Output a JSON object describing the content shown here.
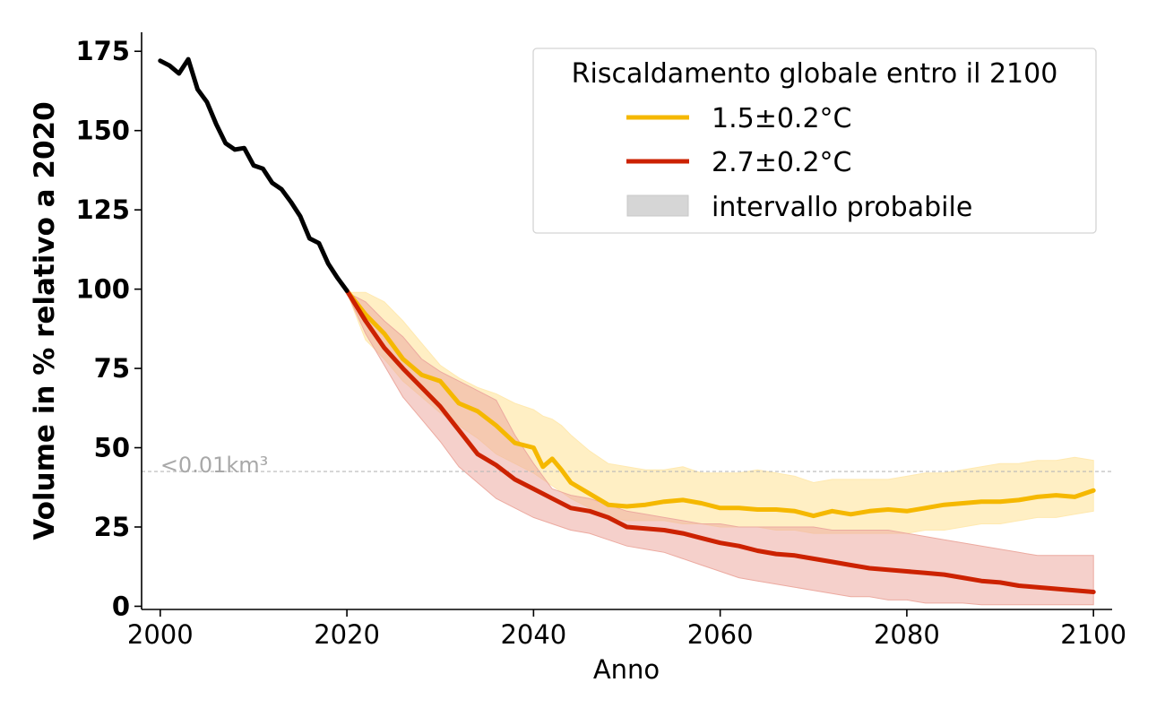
{
  "chart_data": {
    "type": "line",
    "xlabel": "Anno",
    "ylabel": "Volume in % relativo a 2020",
    "xlim": [
      1998,
      2102
    ],
    "ylim": [
      -1,
      181
    ],
    "xticks": [
      2000,
      2020,
      2040,
      2060,
      2080,
      2100
    ],
    "yticks": [
      0,
      25,
      50,
      75,
      100,
      125,
      150,
      175
    ],
    "grid": false,
    "legend": {
      "title": "Riscaldamento globale entro il 2100",
      "placement": "top-right",
      "entries": [
        "1.5±0.2°C",
        "2.7±0.2°C",
        "intervallo probabile"
      ]
    },
    "annotation": {
      "text": "<0.01km³",
      "y": 42.5
    },
    "colors": {
      "historical": "#000000",
      "s15": "#f5b800",
      "s27": "#cc2200",
      "s15_band": "#ffe9b0",
      "s27_band": "#ecaaa0",
      "threshold": "#b8b8b8",
      "legend_patch": "#d6d6d6"
    },
    "historical": {
      "x": [
        2000,
        2001,
        2002,
        2003,
        2004,
        2005,
        2006,
        2007,
        2008,
        2009,
        2010,
        2011,
        2012,
        2013,
        2014,
        2015,
        2016,
        2017,
        2018,
        2019,
        2020
      ],
      "values": [
        172,
        170.5,
        168,
        172.5,
        163,
        159,
        152,
        146,
        144,
        144.5,
        139,
        138,
        133.5,
        131.5,
        127.5,
        123,
        116,
        114.5,
        108,
        103.5,
        99.5
      ]
    },
    "series": [
      {
        "name": "1.5±0.2°C",
        "x": [
          2020,
          2022,
          2024,
          2026,
          2028,
          2030,
          2032,
          2034,
          2036,
          2038,
          2040,
          2041,
          2042,
          2043,
          2044,
          2046,
          2048,
          2050,
          2052,
          2054,
          2056,
          2058,
          2060,
          2062,
          2064,
          2066,
          2068,
          2070,
          2072,
          2074,
          2076,
          2078,
          2080,
          2082,
          2084,
          2086,
          2088,
          2090,
          2092,
          2094,
          2096,
          2098,
          2100
        ],
        "values": [
          99.5,
          92,
          86,
          78,
          73,
          71,
          64,
          61.5,
          57,
          51.5,
          50,
          44,
          46.5,
          43,
          39,
          35.5,
          32,
          31.5,
          32,
          33,
          33.5,
          32.5,
          31,
          31,
          30.5,
          30.5,
          30,
          28.5,
          30,
          29,
          30,
          30.5,
          30,
          31,
          32,
          32.5,
          33,
          33,
          33.5,
          34.5,
          35,
          34.5,
          36.5
        ],
        "band_low": [
          99,
          84,
          78,
          71,
          66,
          61,
          57,
          53,
          48,
          45,
          42,
          40,
          38,
          36,
          34,
          31,
          28,
          27,
          27,
          27,
          26,
          26,
          25,
          25,
          25,
          24,
          24,
          23,
          23,
          23,
          23,
          23,
          23,
          24,
          24,
          25,
          26,
          26,
          27,
          28,
          28,
          29,
          30
        ],
        "band_high": [
          99,
          99,
          96,
          90,
          83,
          76,
          72,
          69,
          67,
          64,
          62,
          60,
          59,
          57,
          54,
          49,
          45,
          44,
          43,
          43,
          44,
          42,
          42,
          42,
          43,
          42,
          41,
          39,
          40,
          40,
          40,
          40,
          41,
          42,
          42,
          43,
          44,
          45,
          45,
          46,
          46,
          47,
          46
        ]
      },
      {
        "name": "2.7±0.2°C",
        "x": [
          2020,
          2022,
          2024,
          2026,
          2028,
          2030,
          2032,
          2034,
          2036,
          2038,
          2040,
          2042,
          2044,
          2046,
          2048,
          2050,
          2052,
          2054,
          2056,
          2058,
          2060,
          2062,
          2064,
          2066,
          2068,
          2070,
          2072,
          2074,
          2076,
          2078,
          2080,
          2082,
          2084,
          2086,
          2088,
          2090,
          2092,
          2094,
          2096,
          2098,
          2100
        ],
        "values": [
          99.5,
          90,
          81.5,
          75,
          69,
          63,
          55.5,
          48,
          44.5,
          40,
          37,
          34,
          31,
          30,
          28,
          25,
          24.5,
          24,
          23,
          21.5,
          20,
          19,
          17.5,
          16.5,
          16,
          15,
          14,
          13,
          12,
          11.5,
          11,
          10.5,
          10,
          9,
          8,
          7.5,
          6.5,
          6,
          5.5,
          5,
          4.5
        ],
        "band_low": [
          99,
          86,
          76,
          66,
          59,
          52,
          44,
          39,
          34,
          31,
          28,
          26,
          24,
          23,
          21,
          19,
          18,
          17,
          15,
          13,
          11,
          9,
          8,
          7,
          6,
          5,
          4,
          3,
          3,
          2,
          2,
          1,
          1,
          1,
          0.5,
          0.5,
          0.5,
          0.5,
          0.5,
          0.5,
          0.5
        ],
        "band_high": [
          99,
          96,
          90,
          85,
          78,
          74,
          71,
          68,
          65,
          54,
          45,
          37,
          35,
          34,
          32,
          30,
          29,
          28,
          27,
          26,
          26,
          25,
          25,
          25,
          25,
          25,
          24,
          24,
          24,
          24,
          23,
          22,
          21,
          20,
          19,
          18,
          17,
          16,
          16,
          16,
          16
        ]
      }
    ]
  }
}
